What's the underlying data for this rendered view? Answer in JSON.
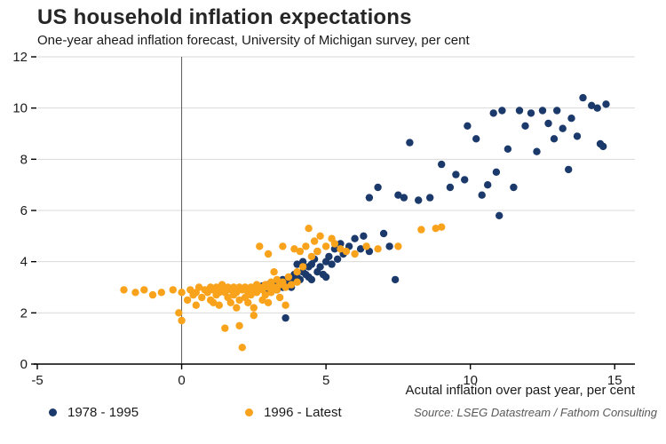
{
  "title": "US household inflation expectations",
  "subtitle": "One-year ahead inflation forecast, University of Michigan survey, per cent",
  "source": "Source: LSEG Datastream / Fathom Consulting",
  "chart_data": {
    "type": "scatter",
    "title": "US household inflation expectations",
    "subtitle": "One-year ahead inflation forecast, University of Michigan survey, per cent",
    "xlabel": "Acutal inflation over past year, per cent",
    "ylabel": "",
    "xlim": [
      -5,
      15.7
    ],
    "ylim": [
      0,
      12
    ],
    "x_ticks": [
      -5,
      0,
      5,
      10,
      15
    ],
    "y_ticks": [
      0,
      2,
      4,
      6,
      8,
      10,
      12
    ],
    "grid": "horizontal gridlines, light gray",
    "zero_line_x": 0,
    "legend_position": "bottom",
    "colors": {
      "series1": "#1b3a6b",
      "series2": "#f9a21b",
      "gridline": "#d9d9d9",
      "axis": "#000000"
    },
    "series": [
      {
        "name": "1978 - 1995",
        "color": "#1b3a6b",
        "points": [
          [
            2.6,
            3.0
          ],
          [
            2.8,
            3.05
          ],
          [
            2.9,
            2.9
          ],
          [
            3.0,
            3.1
          ],
          [
            3.1,
            3.0
          ],
          [
            3.2,
            3.15
          ],
          [
            3.3,
            2.9
          ],
          [
            3.3,
            3.25
          ],
          [
            3.4,
            3.1
          ],
          [
            3.5,
            3.0
          ],
          [
            3.5,
            3.3
          ],
          [
            3.6,
            3.2
          ],
          [
            3.6,
            1.8
          ],
          [
            3.7,
            3.35
          ],
          [
            3.8,
            3.0
          ],
          [
            3.8,
            3.3
          ],
          [
            3.9,
            3.5
          ],
          [
            4.0,
            3.4
          ],
          [
            4.0,
            3.9
          ],
          [
            4.1,
            3.3
          ],
          [
            4.2,
            3.6
          ],
          [
            4.2,
            4.0
          ],
          [
            4.3,
            3.5
          ],
          [
            4.4,
            3.4
          ],
          [
            4.4,
            3.8
          ],
          [
            4.5,
            3.3
          ],
          [
            4.5,
            3.9
          ],
          [
            4.6,
            4.1
          ],
          [
            4.7,
            3.6
          ],
          [
            4.7,
            4.4
          ],
          [
            4.8,
            3.8
          ],
          [
            4.9,
            3.5
          ],
          [
            5.0,
            3.4
          ],
          [
            5.0,
            4.0
          ],
          [
            5.1,
            4.2
          ],
          [
            5.2,
            3.9
          ],
          [
            5.3,
            4.5
          ],
          [
            5.4,
            4.1
          ],
          [
            5.5,
            4.7
          ],
          [
            5.6,
            4.3
          ],
          [
            5.8,
            4.6
          ],
          [
            6.0,
            4.9
          ],
          [
            6.2,
            4.5
          ],
          [
            6.3,
            5.0
          ],
          [
            6.5,
            4.4
          ],
          [
            6.5,
            6.5
          ],
          [
            6.8,
            6.9
          ],
          [
            7.0,
            5.1
          ],
          [
            7.2,
            4.6
          ],
          [
            7.4,
            3.3
          ],
          [
            7.5,
            6.6
          ],
          [
            7.7,
            6.5
          ],
          [
            7.9,
            8.65
          ],
          [
            8.2,
            6.4
          ],
          [
            8.6,
            6.5
          ],
          [
            9.0,
            7.8
          ],
          [
            9.3,
            6.9
          ],
          [
            9.5,
            7.4
          ],
          [
            9.8,
            7.2
          ],
          [
            9.9,
            9.3
          ],
          [
            10.2,
            8.8
          ],
          [
            10.4,
            6.6
          ],
          [
            10.6,
            7.0
          ],
          [
            10.8,
            9.8
          ],
          [
            10.9,
            7.5
          ],
          [
            11.0,
            5.8
          ],
          [
            11.1,
            9.9
          ],
          [
            11.3,
            8.4
          ],
          [
            11.5,
            6.9
          ],
          [
            11.7,
            9.9
          ],
          [
            11.9,
            9.3
          ],
          [
            12.1,
            9.8
          ],
          [
            12.3,
            8.3
          ],
          [
            12.5,
            9.9
          ],
          [
            12.7,
            9.4
          ],
          [
            12.9,
            8.8
          ],
          [
            13.0,
            9.9
          ],
          [
            13.2,
            9.2
          ],
          [
            13.4,
            7.6
          ],
          [
            13.5,
            9.6
          ],
          [
            13.7,
            8.9
          ],
          [
            13.9,
            10.4
          ],
          [
            14.2,
            10.1
          ],
          [
            14.4,
            10.0
          ],
          [
            14.5,
            8.6
          ],
          [
            14.6,
            8.5
          ],
          [
            14.7,
            10.15
          ]
        ]
      },
      {
        "name": "1996 - Latest",
        "color": "#f9a21b",
        "points": [
          [
            -2.0,
            2.9
          ],
          [
            -1.6,
            2.8
          ],
          [
            -1.3,
            2.9
          ],
          [
            -1.0,
            2.7
          ],
          [
            -0.7,
            2.8
          ],
          [
            -0.3,
            2.9
          ],
          [
            -0.1,
            2.0
          ],
          [
            0.0,
            1.7
          ],
          [
            0.0,
            2.8
          ],
          [
            0.2,
            2.5
          ],
          [
            0.3,
            2.9
          ],
          [
            0.4,
            2.7
          ],
          [
            0.5,
            2.3
          ],
          [
            0.5,
            2.8
          ],
          [
            0.6,
            3.0
          ],
          [
            0.7,
            2.6
          ],
          [
            0.8,
            2.9
          ],
          [
            0.9,
            2.8
          ],
          [
            1.0,
            2.5
          ],
          [
            1.0,
            3.0
          ],
          [
            1.1,
            2.4
          ],
          [
            1.1,
            2.9
          ],
          [
            1.2,
            2.7
          ],
          [
            1.2,
            3.0
          ],
          [
            1.3,
            2.3
          ],
          [
            1.3,
            2.8
          ],
          [
            1.4,
            2.9
          ],
          [
            1.4,
            3.1
          ],
          [
            1.5,
            1.4
          ],
          [
            1.5,
            2.8
          ],
          [
            1.6,
            2.6
          ],
          [
            1.6,
            3.0
          ],
          [
            1.7,
            2.4
          ],
          [
            1.7,
            2.9
          ],
          [
            1.8,
            2.7
          ],
          [
            1.8,
            3.0
          ],
          [
            1.9,
            2.2
          ],
          [
            1.9,
            2.8
          ],
          [
            2.0,
            1.5
          ],
          [
            2.0,
            2.5
          ],
          [
            2.0,
            3.0
          ],
          [
            2.1,
            0.65
          ],
          [
            2.1,
            2.9
          ],
          [
            2.2,
            2.6
          ],
          [
            2.2,
            3.0
          ],
          [
            2.3,
            2.4
          ],
          [
            2.3,
            2.8
          ],
          [
            2.4,
            2.7
          ],
          [
            2.4,
            3.0
          ],
          [
            2.5,
            1.9
          ],
          [
            2.5,
            2.2
          ],
          [
            2.5,
            2.9
          ],
          [
            2.6,
            2.8
          ],
          [
            2.6,
            3.1
          ],
          [
            2.7,
            3.0
          ],
          [
            2.7,
            4.6
          ],
          [
            2.8,
            2.5
          ],
          [
            2.8,
            2.9
          ],
          [
            2.9,
            2.7
          ],
          [
            2.9,
            3.1
          ],
          [
            3.0,
            2.4
          ],
          [
            3.0,
            3.0
          ],
          [
            3.0,
            4.3
          ],
          [
            3.1,
            2.8
          ],
          [
            3.1,
            3.2
          ],
          [
            3.2,
            3.0
          ],
          [
            3.2,
            3.6
          ],
          [
            3.3,
            2.9
          ],
          [
            3.3,
            3.3
          ],
          [
            3.4,
            2.6
          ],
          [
            3.4,
            3.1
          ],
          [
            3.5,
            3.2
          ],
          [
            3.5,
            4.6
          ],
          [
            3.6,
            2.3
          ],
          [
            3.6,
            3.0
          ],
          [
            3.7,
            3.4
          ],
          [
            3.8,
            3.1
          ],
          [
            3.9,
            4.5
          ],
          [
            4.0,
            3.2
          ],
          [
            4.0,
            3.6
          ],
          [
            4.1,
            4.4
          ],
          [
            4.2,
            3.8
          ],
          [
            4.3,
            4.6
          ],
          [
            4.4,
            5.3
          ],
          [
            4.5,
            4.2
          ],
          [
            4.6,
            4.8
          ],
          [
            4.7,
            4.4
          ],
          [
            4.8,
            5.0
          ],
          [
            5.0,
            4.6
          ],
          [
            5.2,
            4.9
          ],
          [
            5.3,
            4.7
          ],
          [
            5.5,
            4.5
          ],
          [
            5.7,
            4.4
          ],
          [
            6.0,
            4.3
          ],
          [
            6.4,
            4.6
          ],
          [
            6.8,
            4.5
          ],
          [
            7.5,
            4.6
          ],
          [
            8.3,
            5.25
          ],
          [
            8.8,
            5.3
          ],
          [
            9.0,
            5.35
          ]
        ]
      }
    ]
  }
}
